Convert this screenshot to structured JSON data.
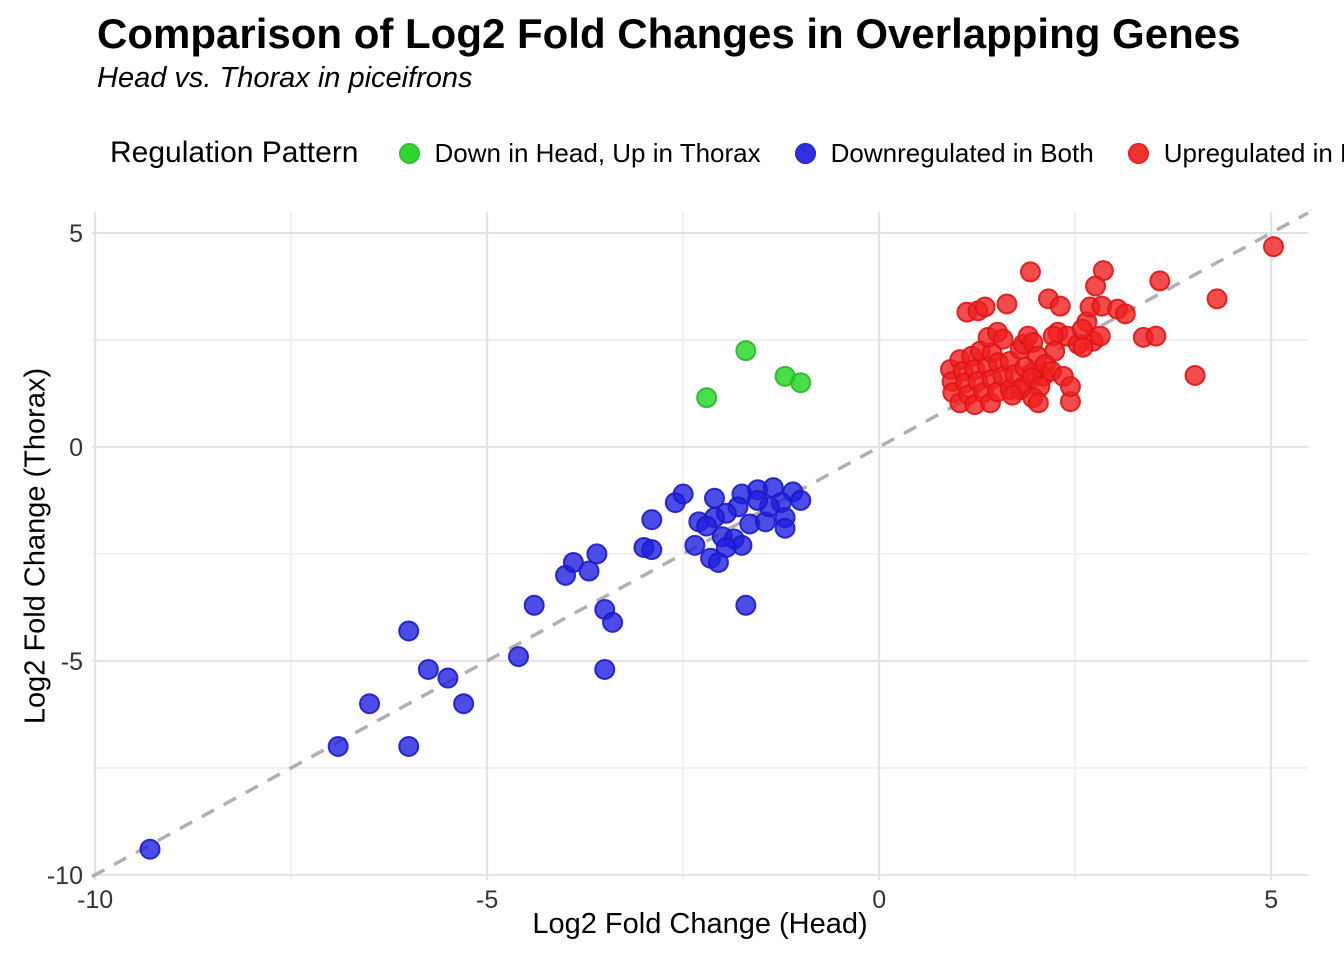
{
  "chart_data": {
    "type": "scatter",
    "title": "Comparison of Log2 Fold Changes in Overlapping Genes",
    "subtitle": "Head vs. Thorax in piceifrons",
    "xlabel": "Log2 Fold Change (Head)",
    "ylabel": "Log2 Fold Change (Thorax)",
    "xlim": [
      -10.04,
      5.47
    ],
    "ylim": [
      -10.12,
      5.49
    ],
    "x_ticks": [
      -10,
      -5,
      0,
      5
    ],
    "y_ticks": [
      5,
      0,
      -5,
      -10
    ],
    "x_minor_ticks": [
      -7.5,
      -2.5,
      2.5
    ],
    "y_minor_ticks": [
      2.5,
      -2.5,
      -7.5
    ],
    "grid": true,
    "legend": {
      "title": "Regulation Pattern",
      "position": "top"
    },
    "reference_line": {
      "type": "identity y=x",
      "style": "dashed",
      "color": "#b0b0b0"
    },
    "colors": {
      "major_grid": "#e2e2e2",
      "minor_grid": "#efefef",
      "tick_text": "#333333"
    },
    "series": [
      {
        "name": "Down in Head, Up in Thorax",
        "color": "#1ed51e",
        "stroke": "#27b827",
        "points": [
          [
            -1.7,
            2.25
          ],
          [
            -2.2,
            1.15
          ],
          [
            -1.2,
            1.65
          ],
          [
            -1.0,
            1.5
          ]
        ]
      },
      {
        "name": "Downregulated in Both",
        "color": "#1f1fe0",
        "stroke": "#1b1bc4",
        "points": [
          [
            -9.3,
            -9.4
          ],
          [
            -6.9,
            -7.0
          ],
          [
            -6.5,
            -6.0
          ],
          [
            -6.0,
            -7.0
          ],
          [
            -6.0,
            -4.3
          ],
          [
            -5.75,
            -5.2
          ],
          [
            -5.5,
            -5.4
          ],
          [
            -5.3,
            -6.0
          ],
          [
            -4.6,
            -4.9
          ],
          [
            -4.4,
            -3.7
          ],
          [
            -4.0,
            -3.0
          ],
          [
            -3.9,
            -2.7
          ],
          [
            -3.7,
            -2.9
          ],
          [
            -3.6,
            -2.5
          ],
          [
            -3.5,
            -3.8
          ],
          [
            -3.4,
            -4.1
          ],
          [
            -3.5,
            -5.2
          ],
          [
            -3.0,
            -2.35
          ],
          [
            -2.9,
            -1.7
          ],
          [
            -2.9,
            -2.4
          ],
          [
            -1.7,
            -3.7
          ],
          [
            -2.6,
            -1.3
          ],
          [
            -2.5,
            -1.1
          ],
          [
            -2.1,
            -1.2
          ],
          [
            -1.75,
            -1.1
          ],
          [
            -1.55,
            -1.0
          ],
          [
            -1.35,
            -0.95
          ],
          [
            -1.1,
            -1.05
          ],
          [
            -1.0,
            -1.25
          ],
          [
            -1.25,
            -1.3
          ],
          [
            -1.8,
            -1.4
          ],
          [
            -1.95,
            -1.55
          ],
          [
            -2.1,
            -1.65
          ],
          [
            -2.3,
            -1.75
          ],
          [
            -2.2,
            -1.85
          ],
          [
            -2.0,
            -2.1
          ],
          [
            -1.85,
            -2.15
          ],
          [
            -1.65,
            -1.8
          ],
          [
            -1.45,
            -1.75
          ],
          [
            -1.2,
            -1.65
          ],
          [
            -1.4,
            -1.4
          ],
          [
            -1.55,
            -1.25
          ],
          [
            -1.2,
            -1.9
          ],
          [
            -1.75,
            -2.3
          ],
          [
            -1.95,
            -2.35
          ],
          [
            -2.35,
            -2.3
          ],
          [
            -2.15,
            -2.6
          ],
          [
            -2.05,
            -2.7
          ]
        ]
      },
      {
        "name": "Upregulated in Both",
        "color": "#f01f1f",
        "stroke": "#dc1616",
        "points": [
          [
            0.91,
            1.81
          ],
          [
            0.93,
            1.53
          ],
          [
            0.94,
            1.27
          ],
          [
            1.03,
            2.04
          ],
          [
            1.03,
            1.03
          ],
          [
            1.07,
            1.77
          ],
          [
            1.1,
            1.5
          ],
          [
            1.14,
            1.22
          ],
          [
            1.18,
            2.12
          ],
          [
            1.22,
            1.81
          ],
          [
            1.22,
            0.99
          ],
          [
            1.26,
            1.53
          ],
          [
            1.29,
            2.24
          ],
          [
            1.33,
            1.27
          ],
          [
            1.38,
            1.88
          ],
          [
            1.42,
            1.03
          ],
          [
            1.44,
            2.2
          ],
          [
            1.44,
            1.58
          ],
          [
            1.51,
            1.29
          ],
          [
            1.52,
            1.97
          ],
          [
            1.58,
            1.65
          ],
          [
            1.67,
            2.0
          ],
          [
            1.67,
            1.34
          ],
          [
            1.73,
            1.69
          ],
          [
            1.84,
            1.41
          ],
          [
            1.96,
            1.74
          ],
          [
            2.09,
            1.65
          ],
          [
            1.12,
            3.15
          ],
          [
            1.26,
            3.18
          ],
          [
            1.35,
            3.27
          ],
          [
            1.63,
            3.34
          ],
          [
            1.39,
            2.56
          ],
          [
            1.51,
            2.68
          ],
          [
            1.58,
            2.52
          ],
          [
            1.8,
            2.28
          ],
          [
            1.84,
            2.4
          ],
          [
            1.9,
            2.59
          ],
          [
            1.96,
            2.44
          ],
          [
            2.28,
            2.68
          ],
          [
            2.4,
            2.59
          ],
          [
            2.54,
            2.4
          ],
          [
            2.73,
            2.47
          ],
          [
            2.22,
            2.59
          ],
          [
            2.24,
            2.24
          ],
          [
            2.6,
            2.33
          ],
          [
            2.02,
            2.12
          ],
          [
            2.12,
            1.93
          ],
          [
            1.86,
            1.86
          ],
          [
            1.95,
            1.62
          ],
          [
            2.05,
            1.41
          ],
          [
            1.8,
            1.34
          ],
          [
            1.7,
            1.21
          ],
          [
            1.96,
            1.15
          ],
          [
            2.44,
            1.06
          ],
          [
            2.2,
            1.77
          ],
          [
            2.35,
            1.65
          ],
          [
            2.44,
            1.41
          ],
          [
            2.03,
            1.03
          ],
          [
            1.93,
            4.09
          ],
          [
            2.86,
            4.12
          ],
          [
            2.76,
            3.76
          ],
          [
            2.16,
            3.46
          ],
          [
            2.31,
            3.29
          ],
          [
            2.65,
            2.92
          ],
          [
            2.69,
            3.27
          ],
          [
            2.84,
            3.29
          ],
          [
            3.04,
            3.22
          ],
          [
            3.14,
            3.11
          ],
          [
            2.59,
            2.75
          ],
          [
            2.82,
            2.59
          ],
          [
            3.37,
            2.56
          ],
          [
            3.53,
            2.59
          ],
          [
            3.58,
            3.88
          ],
          [
            4.31,
            3.46
          ],
          [
            4.03,
            1.67
          ],
          [
            5.03,
            4.68
          ]
        ]
      }
    ],
    "point_style": {
      "radius": 9.5,
      "fill_opacity": 0.8,
      "stroke_width": 2
    }
  }
}
